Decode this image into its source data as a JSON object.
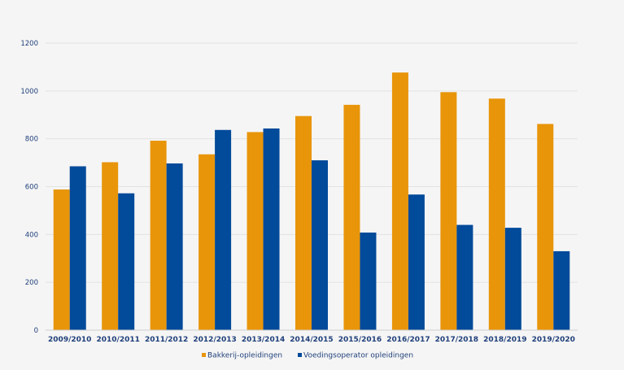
{
  "chart_data": {
    "type": "bar",
    "categories": [
      "2009/2010",
      "2010/2011",
      "2011/2012",
      "2012/2013",
      "2013/2014",
      "2014/2015",
      "2015/2016",
      "2016/2017",
      "2017/2018",
      "2018/2019",
      "2019/2020"
    ],
    "series": [
      {
        "name": "Bakkerij-opleidingen",
        "color": "#e8950a",
        "values": [
          588,
          702,
          792,
          735,
          828,
          895,
          942,
          1077,
          995,
          968,
          862
        ]
      },
      {
        "name": "Voedingsoperator opleidingen",
        "color": "#024a9a",
        "values": [
          685,
          572,
          697,
          837,
          843,
          710,
          408,
          567,
          440,
          428,
          330
        ]
      }
    ],
    "ylim": [
      0,
      1200
    ],
    "yticks": [
      0,
      200,
      400,
      600,
      800,
      1000,
      1200
    ],
    "grid": true,
    "legend": "bottom-center"
  }
}
